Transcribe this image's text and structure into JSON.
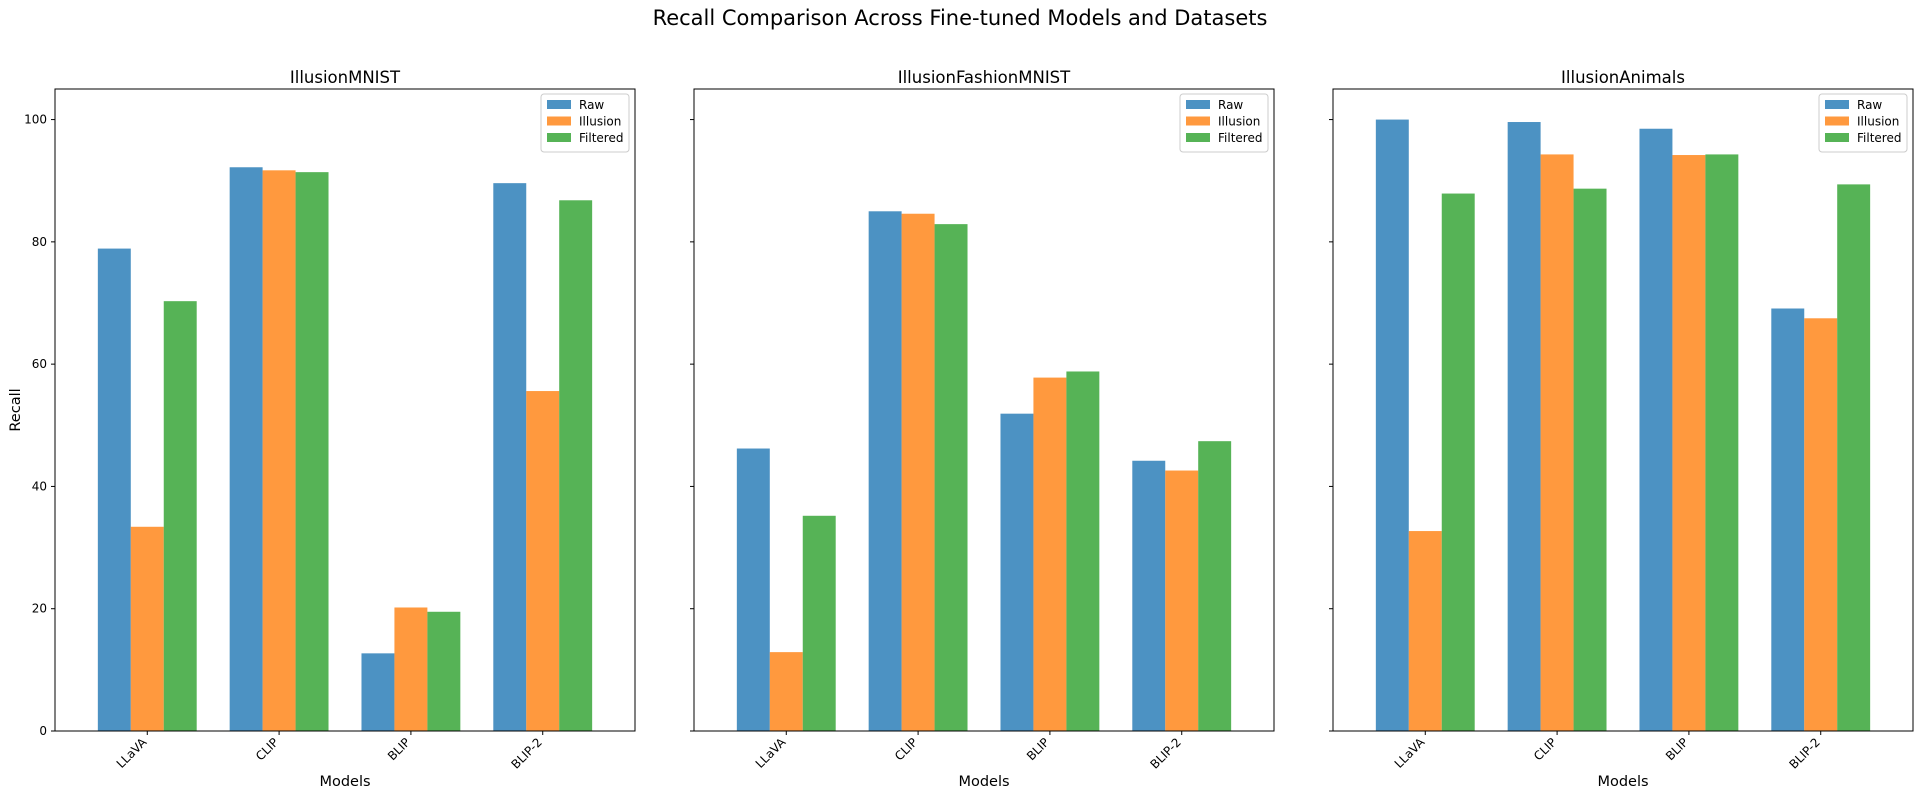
{
  "figure_title": "Recall Comparison Across Fine-tuned Models and Datasets",
  "legend_position": "upper right",
  "colors": {
    "Raw": "#1f77b4",
    "Illusion": "#ff7f0e",
    "Filtered": "#2ca02c"
  },
  "chart_data": [
    {
      "type": "bar",
      "title": "IllusionMNIST",
      "xlabel": "Models",
      "ylabel": "Recall",
      "ylim": [
        0,
        105
      ],
      "yticks": [
        "0",
        "20",
        "40",
        "60",
        "80",
        "100"
      ],
      "grid": false,
      "categories": [
        "LLaVA",
        "CLIP",
        "BLIP",
        "BLIP-2"
      ],
      "series": [
        {
          "name": "Raw",
          "values": [
            78.9,
            92.2,
            12.7,
            89.6
          ]
        },
        {
          "name": "Illusion",
          "values": [
            33.4,
            91.7,
            20.2,
            55.6
          ]
        },
        {
          "name": "Filtered",
          "values": [
            70.3,
            91.4,
            19.5,
            86.8
          ]
        }
      ]
    },
    {
      "type": "bar",
      "title": "IllusionFashionMNIST",
      "xlabel": "Models",
      "ylabel": "",
      "ylim": [
        0,
        105
      ],
      "yticks": [],
      "grid": false,
      "categories": [
        "LLaVA",
        "CLIP",
        "BLIP",
        "BLIP-2"
      ],
      "series": [
        {
          "name": "Raw",
          "values": [
            46.2,
            85.0,
            51.9,
            44.2
          ]
        },
        {
          "name": "Illusion",
          "values": [
            12.9,
            84.6,
            57.8,
            42.6
          ]
        },
        {
          "name": "Filtered",
          "values": [
            35.2,
            82.9,
            58.8,
            47.4
          ]
        }
      ]
    },
    {
      "type": "bar",
      "title": "IllusionAnimals",
      "xlabel": "Models",
      "ylabel": "",
      "ylim": [
        0,
        105
      ],
      "yticks": [],
      "grid": false,
      "categories": [
        "LLaVA",
        "CLIP",
        "BLIP",
        "BLIP-2"
      ],
      "series": [
        {
          "name": "Raw",
          "values": [
            100.0,
            99.6,
            98.5,
            69.1
          ]
        },
        {
          "name": "Illusion",
          "values": [
            32.7,
            94.3,
            94.2,
            67.5
          ]
        },
        {
          "name": "Filtered",
          "values": [
            87.9,
            88.7,
            94.3,
            89.4
          ]
        }
      ]
    }
  ]
}
